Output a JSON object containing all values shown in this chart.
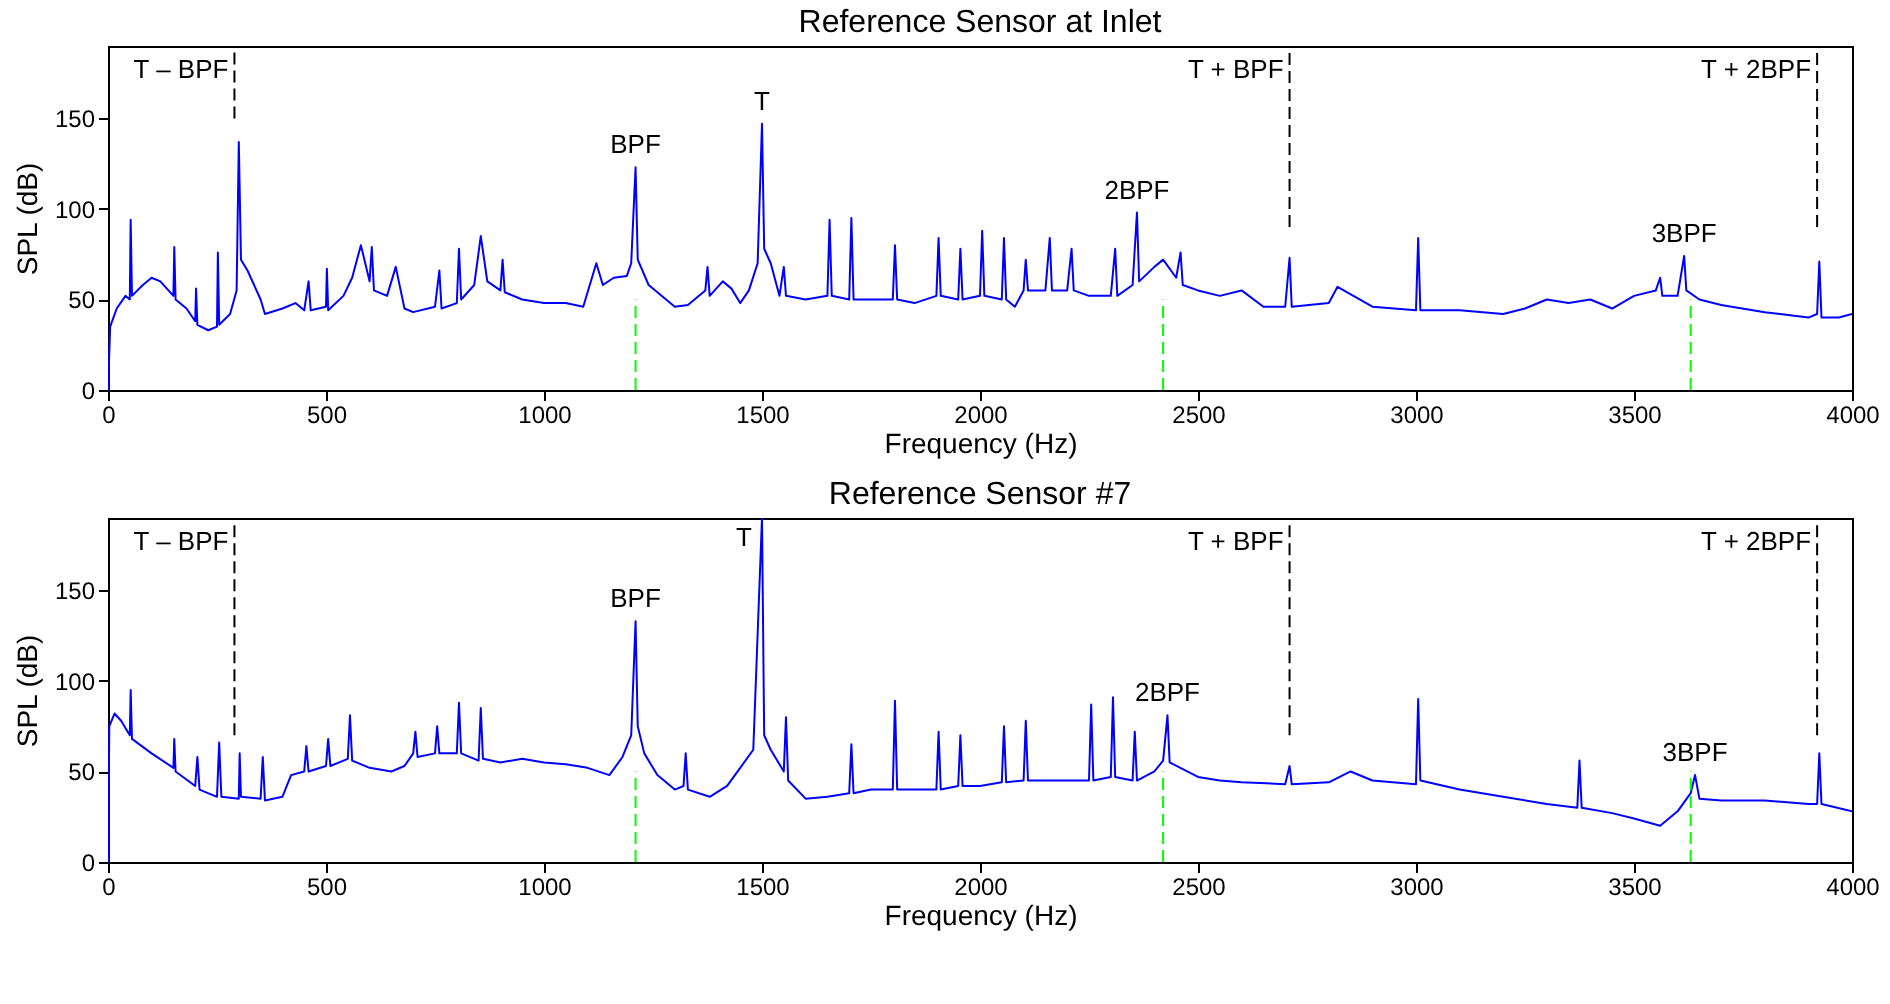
{
  "chart_data": [
    {
      "type": "line",
      "title": "Reference Sensor at Inlet",
      "xlabel": "Frequency (Hz)",
      "ylabel": "SPL (dB)",
      "xlim": [
        0,
        4000
      ],
      "xticks": [
        0,
        500,
        1000,
        1500,
        2000,
        2500,
        3000,
        3500,
        4000
      ],
      "ylim": [
        0,
        190
      ],
      "yticks": [
        0,
        50,
        100,
        150
      ],
      "grid": false,
      "line_style": "solid",
      "marker": "none",
      "series": [
        {
          "color": "#0000ff",
          "x": [
            0,
            5,
            20,
            40,
            50,
            52,
            55,
            80,
            100,
            120,
            150,
            152,
            155,
            180,
            200,
            202,
            205,
            230,
            250,
            252,
            255,
            280,
            295,
            300,
            305,
            320,
            350,
            360,
            400,
            430,
            450,
            460,
            465,
            500,
            502,
            505,
            540,
            560,
            580,
            600,
            605,
            610,
            640,
            660,
            680,
            700,
            750,
            760,
            765,
            800,
            805,
            810,
            840,
            855,
            870,
            900,
            905,
            910,
            950,
            1000,
            1050,
            1090,
            1120,
            1135,
            1160,
            1190,
            1200,
            1210,
            1215,
            1240,
            1280,
            1300,
            1330,
            1370,
            1375,
            1380,
            1410,
            1430,
            1450,
            1470,
            1490,
            1500,
            1505,
            1520,
            1540,
            1550,
            1555,
            1600,
            1650,
            1655,
            1660,
            1700,
            1705,
            1710,
            1800,
            1805,
            1810,
            1850,
            1900,
            1905,
            1910,
            1950,
            1955,
            1960,
            2000,
            2005,
            2010,
            2050,
            2055,
            2060,
            2080,
            2100,
            2105,
            2110,
            2150,
            2160,
            2165,
            2200,
            2210,
            2215,
            2250,
            2300,
            2310,
            2315,
            2350,
            2360,
            2365,
            2400,
            2420,
            2450,
            2460,
            2465,
            2500,
            2550,
            2600,
            2650,
            2700,
            2710,
            2715,
            2800,
            2820,
            2900,
            3000,
            3005,
            3010,
            3100,
            3200,
            3250,
            3300,
            3350,
            3400,
            3450,
            3500,
            3550,
            3560,
            3565,
            3600,
            3615,
            3620,
            3650,
            3700,
            3800,
            3900,
            3920,
            3925,
            3930,
            3970,
            4000
          ],
          "values": [
            0,
            35,
            45,
            52,
            50,
            94,
            52,
            58,
            62,
            60,
            52,
            79,
            50,
            45,
            38,
            56,
            36,
            33,
            35,
            76,
            36,
            42,
            55,
            137,
            72,
            66,
            50,
            42,
            45,
            48,
            44,
            60,
            44,
            46,
            67,
            44,
            52,
            62,
            80,
            60,
            79,
            55,
            52,
            68,
            45,
            43,
            46,
            66,
            45,
            48,
            78,
            50,
            58,
            85,
            60,
            55,
            72,
            54,
            50,
            48,
            48,
            46,
            70,
            58,
            62,
            63,
            70,
            123,
            72,
            58,
            50,
            46,
            47,
            55,
            68,
            52,
            60,
            56,
            48,
            55,
            70,
            147,
            78,
            70,
            52,
            68,
            52,
            50,
            52,
            94,
            52,
            50,
            95,
            50,
            50,
            80,
            50,
            48,
            52,
            84,
            52,
            50,
            78,
            50,
            52,
            88,
            52,
            50,
            84,
            50,
            46,
            55,
            72,
            55,
            55,
            84,
            55,
            55,
            78,
            55,
            52,
            52,
            78,
            52,
            58,
            98,
            60,
            68,
            72,
            62,
            76,
            58,
            55,
            52,
            55,
            46,
            46,
            73,
            46,
            48,
            57,
            46,
            44,
            84,
            44,
            44,
            42,
            45,
            50,
            48,
            50,
            45,
            52,
            55,
            62,
            52,
            52,
            74,
            55,
            50,
            47,
            43,
            40,
            42,
            71,
            40,
            40,
            42
          ]
        },
        {
          "name": "T – BPF",
          "type": "line",
          "color": "#000000",
          "line_style": "dashed",
          "x": [
            290,
            290
          ],
          "values": [
            150,
            190
          ]
        },
        {
          "name": "T + BPF",
          "type": "line",
          "color": "#000000",
          "line_style": "dashed",
          "x": [
            2710,
            2710
          ],
          "values": [
            90,
            190
          ]
        },
        {
          "name": "T + 2BPF",
          "type": "line",
          "color": "#000000",
          "line_style": "dashed",
          "x": [
            3920,
            3920
          ],
          "values": [
            90,
            190
          ]
        },
        {
          "type": "line",
          "color": "#00ff00",
          "line_style": "dashed",
          "x": [
            1210,
            1210
          ],
          "values": [
            0,
            50
          ]
        },
        {
          "type": "line",
          "color": "#00ff00",
          "line_style": "dashed",
          "x": [
            2420,
            2420
          ],
          "values": [
            0,
            50
          ]
        },
        {
          "type": "line",
          "color": "#00ff00",
          "line_style": "dashed",
          "x": [
            3630,
            3630
          ],
          "values": [
            0,
            50
          ]
        }
      ],
      "annotations": [
        {
          "text": "BPF",
          "x": 1210,
          "y": 123
        },
        {
          "text": "T",
          "x": 1500,
          "y": 147
        },
        {
          "text": "2BPF",
          "x": 2360,
          "y": 98
        },
        {
          "text": "3BPF",
          "x": 3615,
          "y": 74
        }
      ]
    },
    {
      "type": "line",
      "title": "Reference Sensor #7",
      "xlabel": "Frequency (Hz)",
      "ylabel": "SPL (dB)",
      "xlim": [
        0,
        4000
      ],
      "xticks": [
        0,
        500,
        1000,
        1500,
        2000,
        2500,
        3000,
        3500,
        4000
      ],
      "ylim": [
        0,
        190
      ],
      "yticks": [
        0,
        50,
        100,
        150
      ],
      "grid": false,
      "line_style": "solid",
      "marker": "none",
      "series": [
        {
          "color": "#0000ff",
          "x": [
            0,
            3,
            15,
            30,
            50,
            52,
            55,
            100,
            150,
            152,
            155,
            200,
            205,
            210,
            250,
            255,
            260,
            300,
            302,
            305,
            350,
            355,
            360,
            400,
            410,
            420,
            450,
            455,
            460,
            500,
            505,
            510,
            550,
            555,
            560,
            600,
            650,
            680,
            700,
            705,
            710,
            750,
            755,
            760,
            800,
            805,
            810,
            850,
            855,
            860,
            900,
            950,
            1000,
            1050,
            1100,
            1150,
            1180,
            1200,
            1210,
            1215,
            1230,
            1260,
            1300,
            1320,
            1325,
            1330,
            1380,
            1420,
            1450,
            1480,
            1500,
            1505,
            1520,
            1550,
            1555,
            1560,
            1600,
            1650,
            1700,
            1705,
            1710,
            1750,
            1800,
            1805,
            1810,
            1900,
            1905,
            1910,
            1950,
            1955,
            1960,
            2000,
            2050,
            2055,
            2060,
            2100,
            2105,
            2110,
            2150,
            2200,
            2250,
            2255,
            2260,
            2300,
            2305,
            2310,
            2350,
            2355,
            2360,
            2400,
            2420,
            2430,
            2435,
            2500,
            2550,
            2600,
            2700,
            2710,
            2715,
            2800,
            2850,
            2900,
            3000,
            3005,
            3010,
            3100,
            3200,
            3300,
            3370,
            3375,
            3380,
            3450,
            3500,
            3560,
            3600,
            3630,
            3640,
            3650,
            3700,
            3800,
            3900,
            3920,
            3925,
            3930,
            4000
          ],
          "values": [
            0,
            75,
            82,
            78,
            70,
            95,
            68,
            60,
            52,
            68,
            50,
            42,
            58,
            40,
            36,
            66,
            36,
            35,
            60,
            36,
            35,
            58,
            34,
            36,
            42,
            48,
            50,
            64,
            50,
            53,
            68,
            53,
            57,
            81,
            56,
            52,
            50,
            53,
            60,
            72,
            58,
            60,
            75,
            60,
            60,
            88,
            60,
            56,
            85,
            57,
            55,
            57,
            55,
            54,
            52,
            48,
            58,
            70,
            133,
            75,
            60,
            48,
            40,
            42,
            60,
            40,
            36,
            42,
            52,
            62,
            190,
            70,
            62,
            50,
            80,
            45,
            35,
            36,
            38,
            65,
            38,
            40,
            40,
            89,
            40,
            40,
            72,
            40,
            42,
            70,
            42,
            42,
            44,
            75,
            44,
            45,
            78,
            45,
            45,
            45,
            45,
            87,
            45,
            47,
            91,
            47,
            45,
            72,
            45,
            50,
            56,
            81,
            55,
            47,
            45,
            44,
            43,
            53,
            43,
            44,
            50,
            45,
            43,
            90,
            45,
            40,
            36,
            32,
            30,
            56,
            30,
            27,
            24,
            20,
            28,
            38,
            48,
            35,
            34,
            34,
            32,
            32,
            60,
            32,
            28
          ]
        },
        {
          "name": "T – BPF",
          "type": "line",
          "color": "#000000",
          "line_style": "dashed",
          "x": [
            290,
            290
          ],
          "values": [
            70,
            190
          ]
        },
        {
          "name": "T + BPF",
          "type": "line",
          "color": "#000000",
          "line_style": "dashed",
          "x": [
            2710,
            2710
          ],
          "values": [
            70,
            190
          ]
        },
        {
          "name": "T + 2BPF",
          "type": "line",
          "color": "#000000",
          "line_style": "dashed",
          "x": [
            3920,
            3920
          ],
          "values": [
            70,
            190
          ]
        },
        {
          "type": "line",
          "color": "#00ff00",
          "line_style": "dashed",
          "x": [
            1210,
            1210
          ],
          "values": [
            0,
            50
          ]
        },
        {
          "type": "line",
          "color": "#00ff00",
          "line_style": "dashed",
          "x": [
            2420,
            2420
          ],
          "values": [
            0,
            50
          ]
        },
        {
          "type": "line",
          "color": "#00ff00",
          "line_style": "dashed",
          "x": [
            3630,
            3630
          ],
          "values": [
            0,
            50
          ]
        }
      ],
      "annotations": [
        {
          "text": "BPF",
          "x": 1210,
          "y": 133
        },
        {
          "text": "T",
          "x": 1500,
          "y": 190
        },
        {
          "text": "2BPF",
          "x": 2430,
          "y": 81
        },
        {
          "text": "3BPF",
          "x": 3640,
          "y": 48
        }
      ]
    }
  ]
}
